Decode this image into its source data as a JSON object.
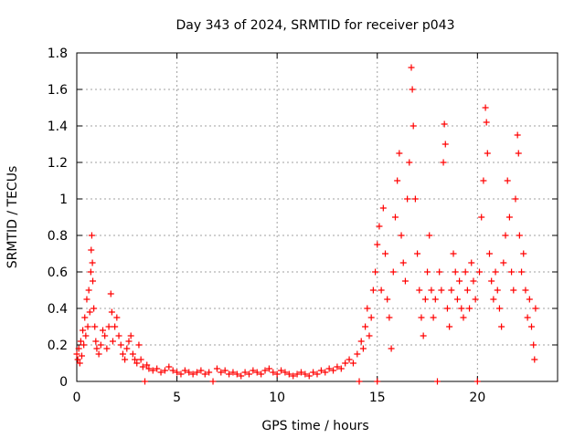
{
  "chart_data": {
    "type": "scatter",
    "title": "Day 343 of 2024, SRMTID for receiver p043",
    "xlabel": "GPS time / hours",
    "ylabel": "SRMTID / TECUs",
    "xlim": [
      0,
      24
    ],
    "ylim": [
      0,
      1.8
    ],
    "x_ticks": [
      0,
      5,
      10,
      15,
      20
    ],
    "x_tick_labels": [
      "0",
      "5",
      "10",
      "15",
      "20"
    ],
    "y_ticks": [
      0,
      0.2,
      0.4,
      0.6,
      0.8,
      1.0,
      1.2,
      1.4,
      1.6,
      1.8
    ],
    "y_tick_labels": [
      "0",
      "0.2",
      "0.4",
      "0.6",
      "0.8",
      "1",
      "1.2",
      "1.4",
      "1.6",
      "1.8"
    ],
    "grid": true,
    "marker": "+",
    "color": "#ff0000",
    "series": [
      {
        "name": "SRMTID",
        "points": [
          [
            0.0,
            0.15
          ],
          [
            0.05,
            0.12
          ],
          [
            0.1,
            0.18
          ],
          [
            0.15,
            0.1
          ],
          [
            0.2,
            0.22
          ],
          [
            0.25,
            0.14
          ],
          [
            0.3,
            0.28
          ],
          [
            0.35,
            0.2
          ],
          [
            0.4,
            0.35
          ],
          [
            0.45,
            0.25
          ],
          [
            0.5,
            0.45
          ],
          [
            0.55,
            0.3
          ],
          [
            0.6,
            0.5
          ],
          [
            0.65,
            0.38
          ],
          [
            0.7,
            0.6
          ],
          [
            0.72,
            0.72
          ],
          [
            0.75,
            0.8
          ],
          [
            0.78,
            0.65
          ],
          [
            0.8,
            0.55
          ],
          [
            0.85,
            0.4
          ],
          [
            0.9,
            0.3
          ],
          [
            0.95,
            0.22
          ],
          [
            1.0,
            0.18
          ],
          [
            1.1,
            0.15
          ],
          [
            1.2,
            0.2
          ],
          [
            1.3,
            0.28
          ],
          [
            1.4,
            0.25
          ],
          [
            1.5,
            0.18
          ],
          [
            1.6,
            0.3
          ],
          [
            1.7,
            0.48
          ],
          [
            1.75,
            0.38
          ],
          [
            1.8,
            0.22
          ],
          [
            1.9,
            0.3
          ],
          [
            2.0,
            0.35
          ],
          [
            2.1,
            0.25
          ],
          [
            2.2,
            0.2
          ],
          [
            2.3,
            0.15
          ],
          [
            2.4,
            0.12
          ],
          [
            2.5,
            0.18
          ],
          [
            2.6,
            0.22
          ],
          [
            2.7,
            0.25
          ],
          [
            2.8,
            0.15
          ],
          [
            2.9,
            0.12
          ],
          [
            3.0,
            0.1
          ],
          [
            3.1,
            0.2
          ],
          [
            3.2,
            0.12
          ],
          [
            3.3,
            0.08
          ],
          [
            3.4,
            0.0
          ],
          [
            3.5,
            0.09
          ],
          [
            3.6,
            0.07
          ],
          [
            3.8,
            0.06
          ],
          [
            4.0,
            0.07
          ],
          [
            4.2,
            0.05
          ],
          [
            4.4,
            0.06
          ],
          [
            4.6,
            0.08
          ],
          [
            4.8,
            0.06
          ],
          [
            5.0,
            0.05
          ],
          [
            5.2,
            0.04
          ],
          [
            5.4,
            0.06
          ],
          [
            5.6,
            0.05
          ],
          [
            5.8,
            0.04
          ],
          [
            6.0,
            0.05
          ],
          [
            6.2,
            0.06
          ],
          [
            6.4,
            0.04
          ],
          [
            6.6,
            0.05
          ],
          [
            6.8,
            0.0
          ],
          [
            7.0,
            0.07
          ],
          [
            7.2,
            0.05
          ],
          [
            7.4,
            0.06
          ],
          [
            7.6,
            0.04
          ],
          [
            7.8,
            0.05
          ],
          [
            8.0,
            0.04
          ],
          [
            8.2,
            0.03
          ],
          [
            8.4,
            0.05
          ],
          [
            8.6,
            0.04
          ],
          [
            8.8,
            0.06
          ],
          [
            9.0,
            0.05
          ],
          [
            9.2,
            0.04
          ],
          [
            9.4,
            0.06
          ],
          [
            9.6,
            0.07
          ],
          [
            9.8,
            0.05
          ],
          [
            10.0,
            0.04
          ],
          [
            10.2,
            0.06
          ],
          [
            10.4,
            0.05
          ],
          [
            10.6,
            0.04
          ],
          [
            10.8,
            0.03
          ],
          [
            11.0,
            0.04
          ],
          [
            11.2,
            0.05
          ],
          [
            11.4,
            0.04
          ],
          [
            11.6,
            0.03
          ],
          [
            11.8,
            0.05
          ],
          [
            12.0,
            0.04
          ],
          [
            12.2,
            0.06
          ],
          [
            12.4,
            0.05
          ],
          [
            12.6,
            0.07
          ],
          [
            12.8,
            0.06
          ],
          [
            13.0,
            0.08
          ],
          [
            13.2,
            0.07
          ],
          [
            13.4,
            0.1
          ],
          [
            13.6,
            0.12
          ],
          [
            13.8,
            0.1
          ],
          [
            14.0,
            0.15
          ],
          [
            14.1,
            0.0
          ],
          [
            14.2,
            0.22
          ],
          [
            14.3,
            0.18
          ],
          [
            14.4,
            0.3
          ],
          [
            14.5,
            0.4
          ],
          [
            14.6,
            0.25
          ],
          [
            14.7,
            0.35
          ],
          [
            14.8,
            0.5
          ],
          [
            14.9,
            0.6
          ],
          [
            15.0,
            0.0
          ],
          [
            15.0,
            0.75
          ],
          [
            15.1,
            0.85
          ],
          [
            15.2,
            0.5
          ],
          [
            15.3,
            0.95
          ],
          [
            15.4,
            0.7
          ],
          [
            15.5,
            0.45
          ],
          [
            15.6,
            0.35
          ],
          [
            15.7,
            0.18
          ],
          [
            15.8,
            0.6
          ],
          [
            15.9,
            0.9
          ],
          [
            16.0,
            1.1
          ],
          [
            16.1,
            1.25
          ],
          [
            16.2,
            0.8
          ],
          [
            16.3,
            0.65
          ],
          [
            16.4,
            0.55
          ],
          [
            16.5,
            1.0
          ],
          [
            16.6,
            1.2
          ],
          [
            16.7,
            1.72
          ],
          [
            16.75,
            1.6
          ],
          [
            16.8,
            1.4
          ],
          [
            16.9,
            1.0
          ],
          [
            17.0,
            0.7
          ],
          [
            17.1,
            0.5
          ],
          [
            17.2,
            0.35
          ],
          [
            17.3,
            0.25
          ],
          [
            17.4,
            0.45
          ],
          [
            17.5,
            0.6
          ],
          [
            17.6,
            0.8
          ],
          [
            17.7,
            0.5
          ],
          [
            17.8,
            0.35
          ],
          [
            17.9,
            0.45
          ],
          [
            18.0,
            0.0
          ],
          [
            18.1,
            0.6
          ],
          [
            18.2,
            0.5
          ],
          [
            18.3,
            1.2
          ],
          [
            18.35,
            1.41
          ],
          [
            18.4,
            1.3
          ],
          [
            18.5,
            0.4
          ],
          [
            18.6,
            0.3
          ],
          [
            18.7,
            0.5
          ],
          [
            18.8,
            0.7
          ],
          [
            18.9,
            0.6
          ],
          [
            19.0,
            0.45
          ],
          [
            19.1,
            0.55
          ],
          [
            19.2,
            0.4
          ],
          [
            19.3,
            0.35
          ],
          [
            19.4,
            0.6
          ],
          [
            19.5,
            0.5
          ],
          [
            19.6,
            0.4
          ],
          [
            19.7,
            0.65
          ],
          [
            19.8,
            0.55
          ],
          [
            19.9,
            0.45
          ],
          [
            20.0,
            0.0
          ],
          [
            20.1,
            0.6
          ],
          [
            20.2,
            0.9
          ],
          [
            20.3,
            1.1
          ],
          [
            20.4,
            1.5
          ],
          [
            20.45,
            1.42
          ],
          [
            20.5,
            1.25
          ],
          [
            20.6,
            0.7
          ],
          [
            20.7,
            0.55
          ],
          [
            20.8,
            0.45
          ],
          [
            20.9,
            0.6
          ],
          [
            21.0,
            0.5
          ],
          [
            21.1,
            0.4
          ],
          [
            21.2,
            0.3
          ],
          [
            21.3,
            0.65
          ],
          [
            21.4,
            0.8
          ],
          [
            21.5,
            1.1
          ],
          [
            21.6,
            0.9
          ],
          [
            21.7,
            0.6
          ],
          [
            21.8,
            0.5
          ],
          [
            21.9,
            1.0
          ],
          [
            22.0,
            1.35
          ],
          [
            22.05,
            1.25
          ],
          [
            22.1,
            0.8
          ],
          [
            22.2,
            0.6
          ],
          [
            22.3,
            0.7
          ],
          [
            22.4,
            0.5
          ],
          [
            22.5,
            0.35
          ],
          [
            22.6,
            0.45
          ],
          [
            22.7,
            0.3
          ],
          [
            22.8,
            0.2
          ],
          [
            22.85,
            0.12
          ],
          [
            22.9,
            0.4
          ]
        ]
      }
    ]
  }
}
